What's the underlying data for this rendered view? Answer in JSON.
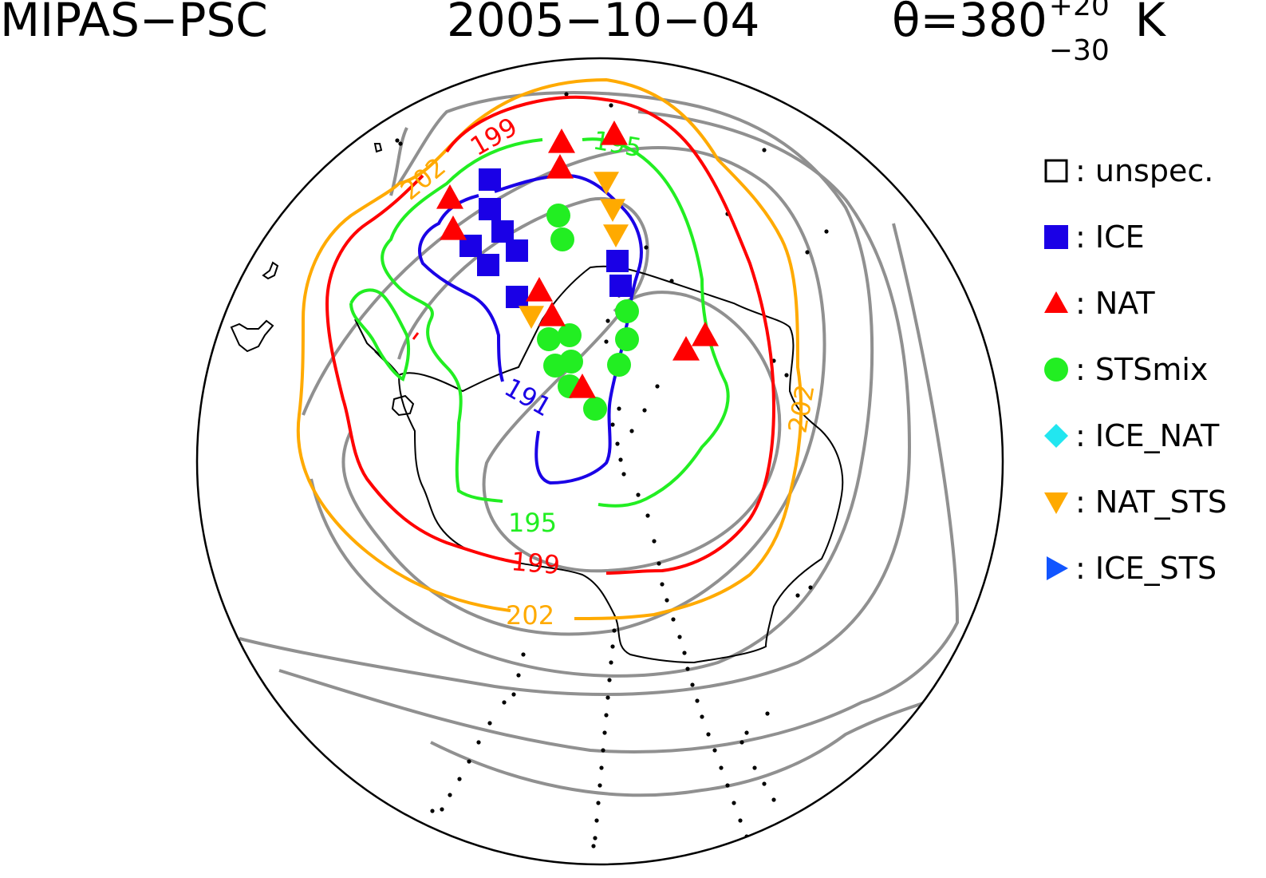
{
  "header": {
    "left_title": "MIPAS−PSC",
    "date": "2005−10−04",
    "theta_label": "θ=380",
    "theta_sup": "+20",
    "theta_sub": "−30",
    "theta_unit": "K"
  },
  "legend": [
    {
      "symbol": "square-open",
      "label": ": unspec.",
      "color": "#000000"
    },
    {
      "symbol": "square",
      "label": ": ICE",
      "color": "#1a00e6"
    },
    {
      "symbol": "triangle-up",
      "label": ": NAT",
      "color": "#ff0000"
    },
    {
      "symbol": "circle",
      "label": ": STSmix",
      "color": "#22ee22"
    },
    {
      "symbol": "diamond",
      "label": ": ICE_NAT",
      "color": "#22e6f0"
    },
    {
      "symbol": "triangle-down",
      "label": ": NAT_STS",
      "color": "#ffaa00"
    },
    {
      "symbol": "triangle-right",
      "label": ": ICE_STS",
      "color": "#1155ff"
    }
  ],
  "contour_labels": [
    {
      "text": "199",
      "color": "#ff0000"
    },
    {
      "text": "202",
      "color": "#ffaa00"
    },
    {
      "text": "195",
      "color": "#22ee22"
    },
    {
      "text": "191",
      "color": "#1a00e6"
    },
    {
      "text": "202",
      "color": "#ffaa00"
    },
    {
      "text": "195",
      "color": "#22ee22"
    },
    {
      "text": "199",
      "color": "#ff0000"
    },
    {
      "text": "202",
      "color": "#ffaa00"
    }
  ],
  "map_data": {
    "projection": "south polar stereographic",
    "colors": {
      "ice": "#1a00e6",
      "nat": "#ff0000",
      "sts": "#22ee22",
      "nat_sts": "#ffaa00",
      "contour_191": "#1a00e6",
      "contour_195": "#22ee22",
      "contour_199": "#ff0000",
      "contour_202": "#ffaa00",
      "isentrope": "#909090"
    },
    "observations": {
      "ICE": [
        [
          614,
          225
        ],
        [
          614,
          262
        ],
        [
          630,
          290
        ],
        [
          648,
          314
        ],
        [
          590,
          308
        ],
        [
          612,
          332
        ],
        [
          648,
          372
        ],
        [
          774,
          327
        ],
        [
          778,
          358
        ]
      ],
      "NAT": [
        [
          704,
          178
        ],
        [
          770,
          168
        ],
        [
          702,
          210
        ],
        [
          564,
          248
        ],
        [
          568,
          287
        ],
        [
          676,
          364
        ],
        [
          692,
          395
        ],
        [
          884,
          420
        ],
        [
          860,
          438
        ],
        [
          730,
          485
        ]
      ],
      "STSmix": [
        [
          700,
          270
        ],
        [
          705,
          300
        ],
        [
          786,
          390
        ],
        [
          714,
          420
        ],
        [
          688,
          425
        ],
        [
          786,
          425
        ],
        [
          716,
          453
        ],
        [
          696,
          458
        ],
        [
          776,
          457
        ],
        [
          714,
          484
        ],
        [
          746,
          512
        ]
      ],
      "NAT_STS": [
        [
          760,
          228
        ],
        [
          768,
          262
        ],
        [
          772,
          294
        ],
        [
          666,
          396
        ]
      ]
    }
  }
}
